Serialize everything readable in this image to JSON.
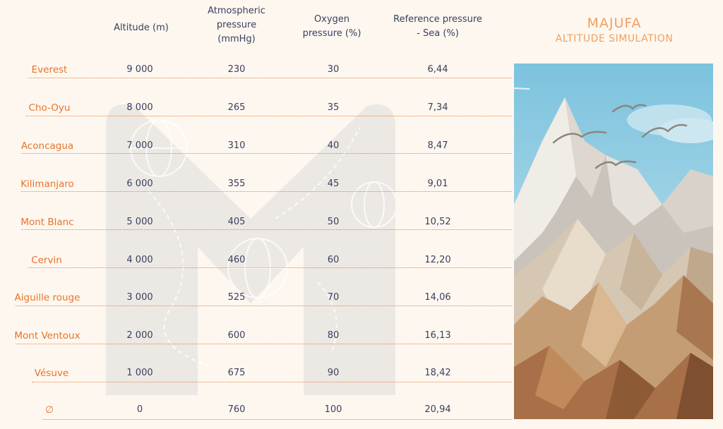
{
  "brand": {
    "title": "MAJUFA",
    "subtitle": "ALTITUDE SIMULATION"
  },
  "headers": {
    "altitude": [
      "Altitude (m)"
    ],
    "atmospheric": [
      "Atmospheric",
      "pressure",
      "(mmHg)"
    ],
    "oxygen": [
      "Oxygen",
      "pressure (%)"
    ],
    "reference": [
      "Reference pressure",
      "- Sea (%)"
    ]
  },
  "rows": [
    {
      "name": "Everest",
      "altitude": "9 000",
      "atm": "230",
      "oxygen": "30",
      "ref": "6,44"
    },
    {
      "name": "Cho-Oyu",
      "altitude": "8 000",
      "atm": "265",
      "oxygen": "35",
      "ref": "7,34"
    },
    {
      "name": "Aconcagua",
      "altitude": "7 000",
      "atm": "310",
      "oxygen": "40",
      "ref": "8,47"
    },
    {
      "name": "Kilimanjaro",
      "altitude": "6 000",
      "atm": "355",
      "oxygen": "45",
      "ref": "9,01"
    },
    {
      "name": "Mont Blanc",
      "altitude": "5 000",
      "atm": "405",
      "oxygen": "50",
      "ref": "10,52"
    },
    {
      "name": "Cervin",
      "altitude": "4 000",
      "atm": "460",
      "oxygen": "60",
      "ref": "12,20"
    },
    {
      "name": "Aiguille rouge",
      "altitude": "3 000",
      "atm": "525",
      "oxygen": "70",
      "ref": "14,06"
    },
    {
      "name": "Mont Ventoux",
      "altitude": "2 000",
      "atm": "600",
      "oxygen": "80",
      "ref": "16,13"
    },
    {
      "name": "Vésuve",
      "altitude": "1 000",
      "atm": "675",
      "oxygen": "90",
      "ref": "18,42"
    },
    {
      "name": "∅",
      "altitude": "0",
      "atm": "760",
      "oxygen": "100",
      "ref": "20,94"
    }
  ],
  "colors": {
    "accent": "#e8742a",
    "text": "#3a3f5c",
    "background": "#fdf7f0",
    "sky": "#7fc4dd"
  },
  "icons": {
    "watermark": "majufa-m-logo-icon",
    "birds": "birds-icon"
  }
}
